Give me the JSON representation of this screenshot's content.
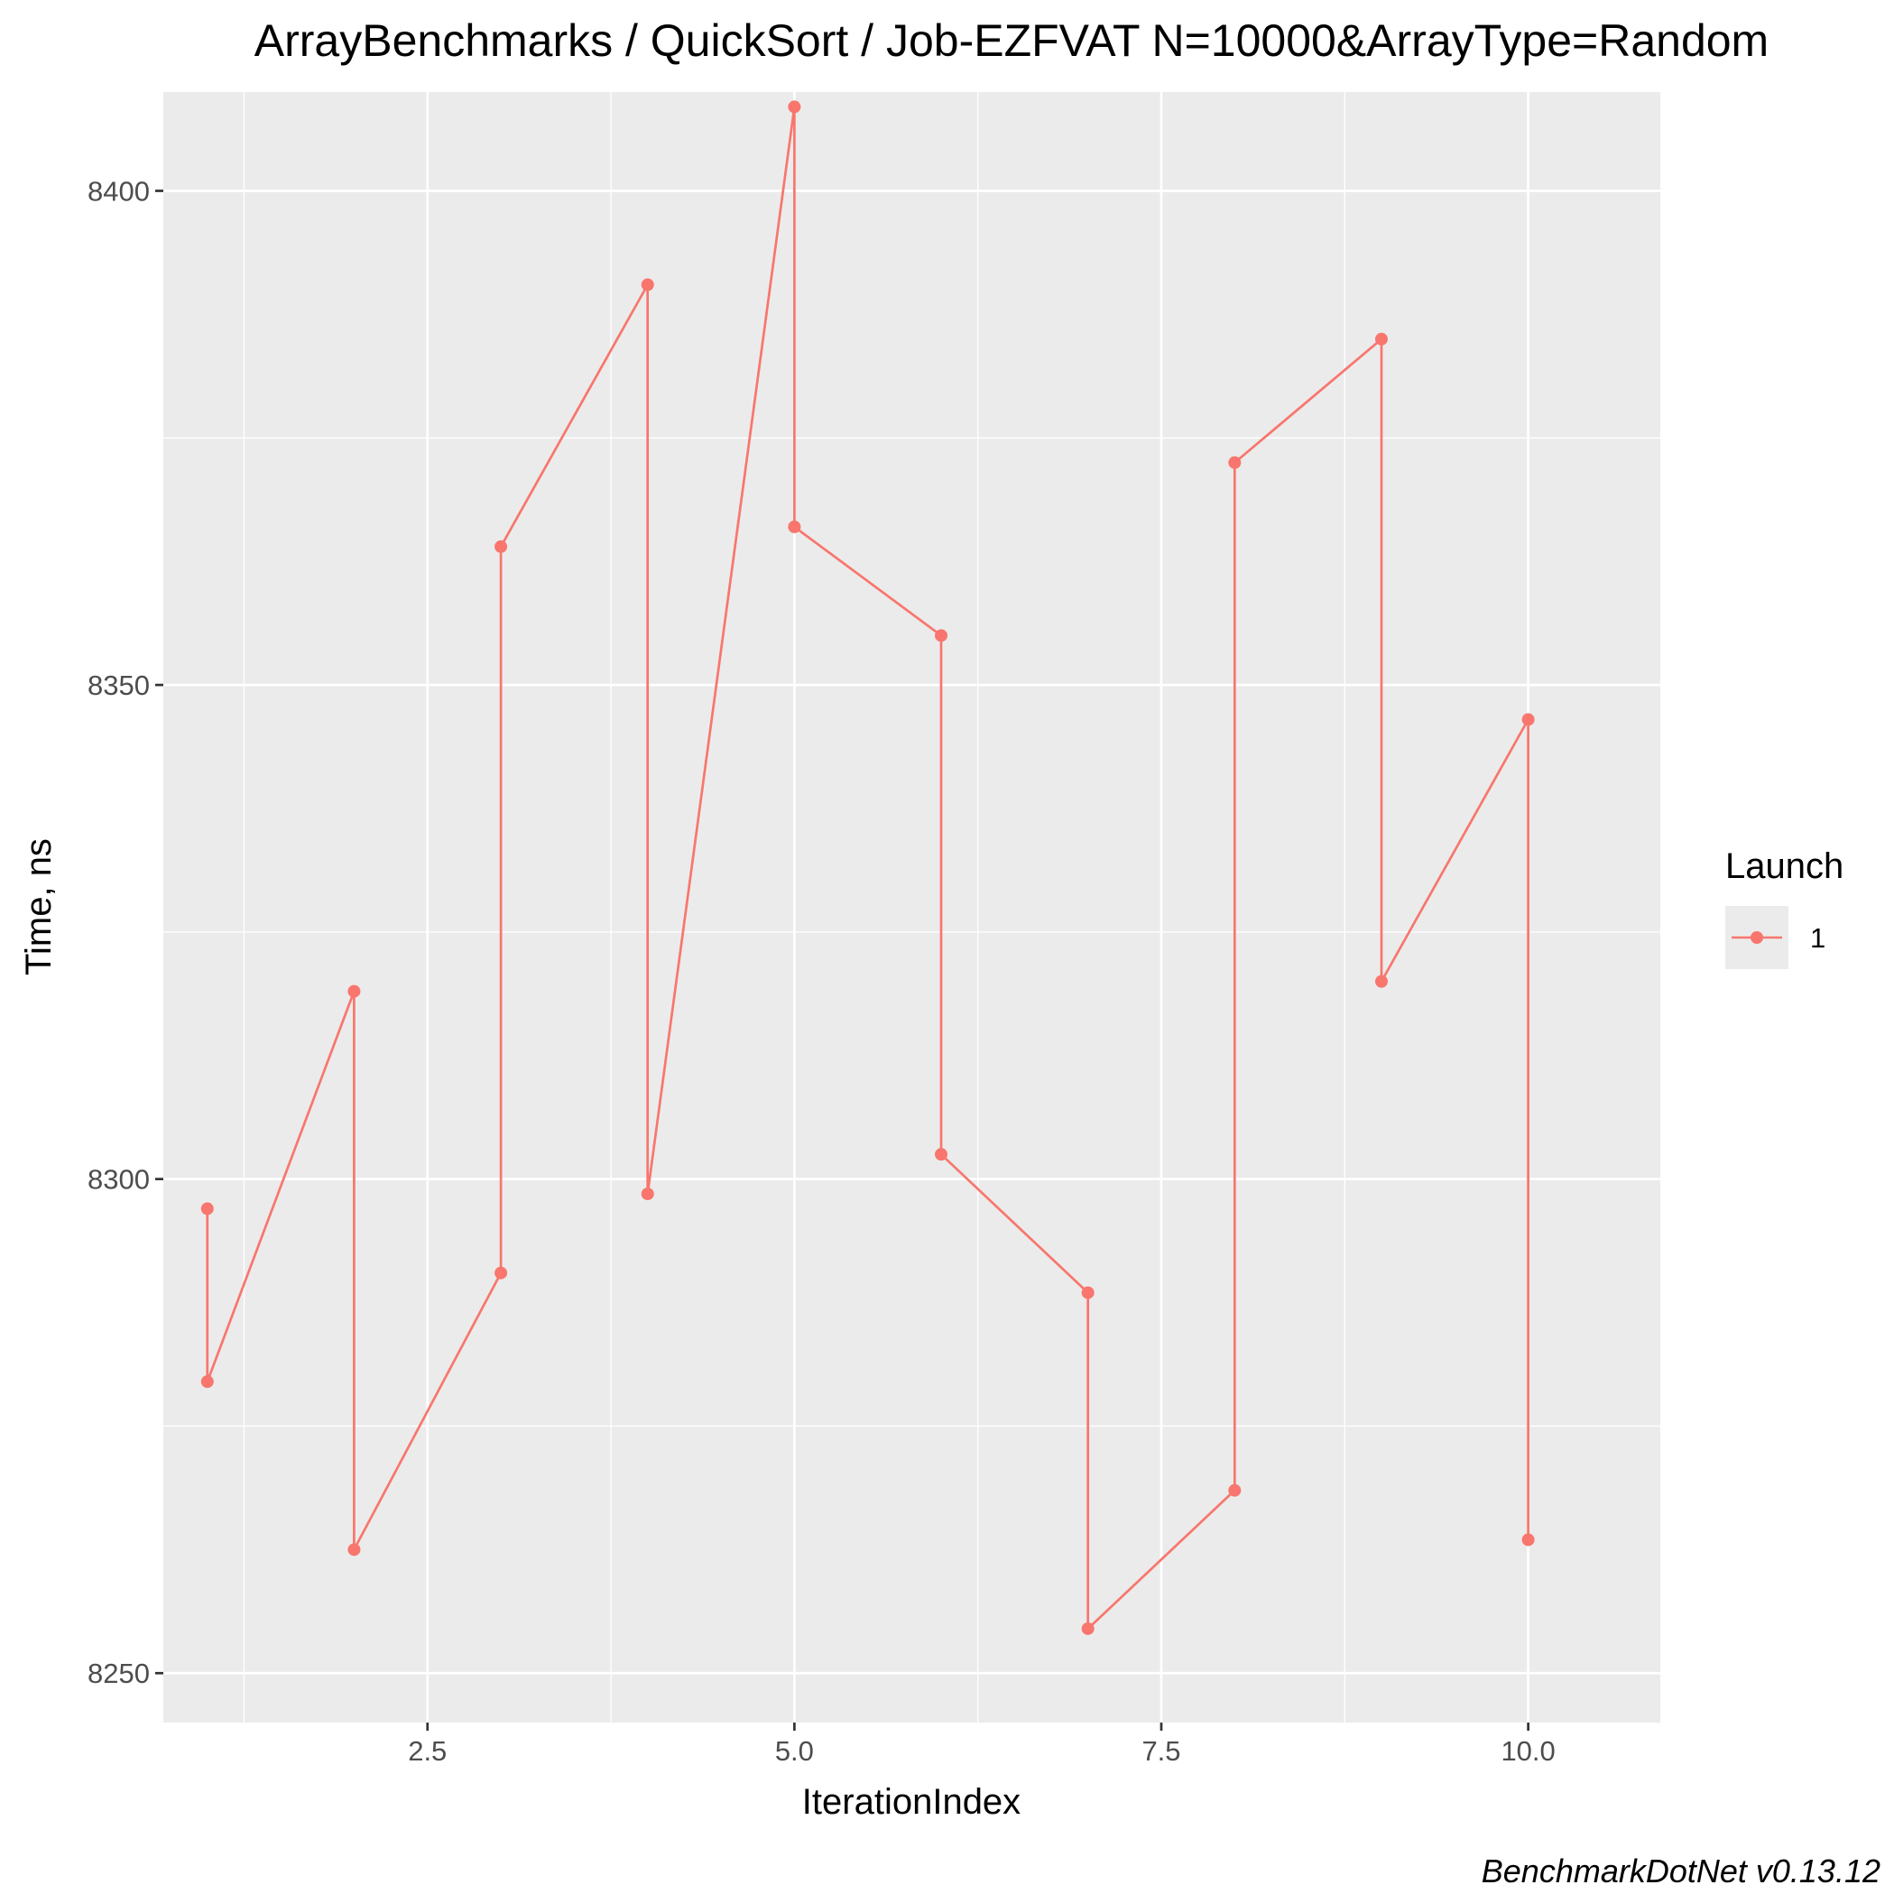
{
  "chart_data": {
    "type": "line",
    "title": "ArrayBenchmarks / QuickSort / Job-EZFVAT N=10000&ArrayType=Random",
    "xlabel": "IterationIndex",
    "ylabel": "Time, ns",
    "xlim": [
      0.7,
      10.9
    ],
    "ylim": [
      8245,
      8410
    ],
    "x_ticks": [
      2.5,
      5.0,
      7.5,
      10.0
    ],
    "x_tick_labels": [
      "2.5",
      "5.0",
      "7.5",
      "10.0"
    ],
    "y_ticks": [
      8250,
      8300,
      8350,
      8400
    ],
    "y_tick_labels": [
      "8250",
      "8300",
      "8350",
      "8400"
    ],
    "grid": true,
    "legend": {
      "title": "Launch",
      "position": "right",
      "entries": [
        "1"
      ]
    },
    "series": [
      {
        "name": "1",
        "color": "#F8766D",
        "points": [
          [
            1,
            8297
          ],
          [
            1,
            8279.5
          ],
          [
            2,
            8319
          ],
          [
            2,
            8262.5
          ],
          [
            3,
            8290.5
          ],
          [
            3,
            8364
          ],
          [
            4,
            8390.5
          ],
          [
            4,
            8298.5
          ],
          [
            5,
            8408.5
          ],
          [
            5,
            8366
          ],
          [
            6,
            8355
          ],
          [
            6,
            8302.5
          ],
          [
            7,
            8288.5
          ],
          [
            7,
            8254.5
          ],
          [
            8,
            8268.5
          ],
          [
            8,
            8372.5
          ],
          [
            9,
            8385
          ],
          [
            9,
            8320
          ],
          [
            10,
            8346.5
          ],
          [
            10,
            8263.5
          ]
        ]
      }
    ]
  },
  "caption": "BenchmarkDotNet v0.13.12"
}
